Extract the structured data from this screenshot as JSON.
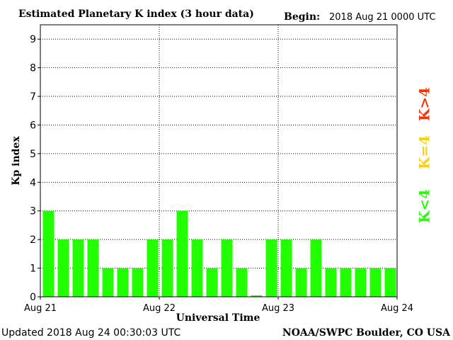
{
  "chart_data": {
    "type": "bar",
    "title": "Estimated Planetary K index (3 hour data)",
    "begin_label": "Begin:",
    "begin_value": "2018 Aug 21 0000 UTC",
    "ylabel": "Kp index",
    "xlabel": "Universal Time",
    "ylim": [
      0,
      9.5
    ],
    "yticks": [
      0,
      1,
      2,
      3,
      4,
      5,
      6,
      7,
      8,
      9
    ],
    "x_tick_labels": [
      "Aug 21",
      "Aug 22",
      "Aug 23",
      "Aug 24"
    ],
    "values": [
      3,
      2,
      2,
      2,
      1,
      1,
      1,
      2,
      2,
      3,
      2,
      1,
      2,
      1,
      0.05,
      2,
      2,
      1,
      2,
      1,
      1,
      1,
      1,
      1
    ],
    "bar_color": "#22ff00",
    "grid": true,
    "legend": [
      {
        "text": "K>4",
        "color": "#ff3300"
      },
      {
        "text": "K=4",
        "color": "#ffd000"
      },
      {
        "text": "K<4",
        "color": "#22ff00"
      }
    ]
  },
  "footer": {
    "updated": "Updated 2018 Aug 24 00:30:03 UTC",
    "source": "NOAA/SWPC Boulder, CO USA"
  }
}
